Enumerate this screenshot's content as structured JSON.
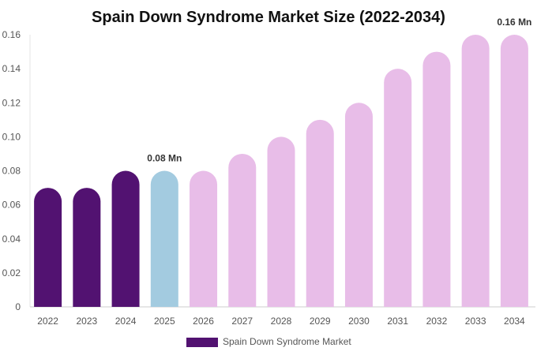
{
  "chart_data": {
    "type": "bar",
    "title": "Spain Down Syndrome Market Size (2022-2034)",
    "xlabel": "",
    "ylabel": "",
    "categories": [
      "2022",
      "2023",
      "2024",
      "2025",
      "2026",
      "2027",
      "2028",
      "2029",
      "2030",
      "2031",
      "2032",
      "2033",
      "2034"
    ],
    "series": [
      {
        "name": "Spain Down Syndrome Market",
        "values": [
          0.07,
          0.07,
          0.08,
          0.08,
          0.08,
          0.09,
          0.1,
          0.11,
          0.12,
          0.14,
          0.15,
          0.16,
          0.16
        ]
      }
    ],
    "bar_colors": [
      "#521271",
      "#521271",
      "#521271",
      "#a3cbe0",
      "#e8bde8",
      "#e8bde8",
      "#e8bde8",
      "#e8bde8",
      "#e8bde8",
      "#e8bde8",
      "#e8bde8",
      "#e8bde8",
      "#e8bde8"
    ],
    "ylim": [
      0,
      0.16
    ],
    "yticks": [
      "0",
      "0.02",
      "0.04",
      "0.06",
      "0.08",
      "0.10",
      "0.12",
      "0.14",
      "0.16"
    ],
    "annotations": [
      {
        "category": "2025",
        "text": "0.08 Mn"
      },
      {
        "category": "2034",
        "text": "0.16 Mn"
      }
    ],
    "legend": {
      "position": "bottom-center",
      "label": "Spain Down Syndrome Market",
      "color": "#521271"
    },
    "grid": false
  }
}
